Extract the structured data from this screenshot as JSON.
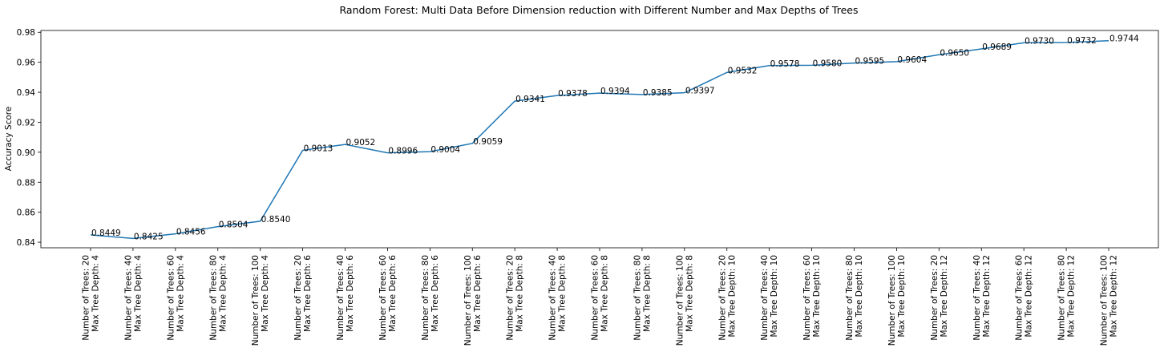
{
  "chart_data": {
    "type": "line",
    "title": "Random Forest: Multi Data Before Dimension reduction with Different Number and Max Depths of Trees",
    "xlabel": "",
    "ylabel": "Accuracy Score",
    "ylim": [
      0.8363,
      0.9812
    ],
    "yticks": [
      "0.84",
      "0.86",
      "0.88",
      "0.90",
      "0.92",
      "0.94",
      "0.96",
      "0.98"
    ],
    "ytick_values": [
      0.84,
      0.86,
      0.88,
      0.9,
      0.92,
      0.94,
      0.96,
      0.98
    ],
    "grid": false,
    "line_color": "#1f77b4",
    "categories": [
      [
        "Number of Trees: 20",
        "Max Tree Depth: 4"
      ],
      [
        "Number of Trees: 40",
        "Max Tree Depth: 4"
      ],
      [
        "Number of Trees: 60",
        "Max Tree Depth: 4"
      ],
      [
        "Number of Trees: 80",
        "Max Tree Depth: 4"
      ],
      [
        "Number of Trees: 100",
        "Max Tree Depth: 4"
      ],
      [
        "Number of Trees: 20",
        "Max Tree Depth: 6"
      ],
      [
        "Number of Trees: 40",
        "Max Tree Depth: 6"
      ],
      [
        "Number of Trees: 60",
        "Max Tree Depth: 6"
      ],
      [
        "Number of Trees: 80",
        "Max Tree Depth: 6"
      ],
      [
        "Number of Trees: 100",
        "Max Tree Depth: 6"
      ],
      [
        "Number of Trees: 20",
        "Max Tree Depth: 8"
      ],
      [
        "Number of Trees: 40",
        "Max Tree Depth: 8"
      ],
      [
        "Number of Trees: 60",
        "Max Tree Depth: 8"
      ],
      [
        "Number of Trees: 80",
        "Max Tree Depth: 8"
      ],
      [
        "Number of Trees: 100",
        "Max Tree Depth: 8"
      ],
      [
        "Number of Trees: 20",
        "Max Tree Depth: 10"
      ],
      [
        "Number of Trees: 40",
        "Max Tree Depth: 10"
      ],
      [
        "Number of Trees: 60",
        "Max Tree Depth: 10"
      ],
      [
        "Number of Trees: 80",
        "Max Tree Depth: 10"
      ],
      [
        "Number of Trees: 100",
        "Max Tree Depth: 10"
      ],
      [
        "Number of Trees: 20",
        "Max Tree Depth: 12"
      ],
      [
        "Number of Trees: 40",
        "Max Tree Depth: 12"
      ],
      [
        "Number of Trees: 60",
        "Max Tree Depth: 12"
      ],
      [
        "Number of Trees: 80",
        "Max Tree Depth: 12"
      ],
      [
        "Number of Trees: 100",
        "Max Tree Depth: 12"
      ]
    ],
    "values": [
      0.8449,
      0.8425,
      0.8456,
      0.8504,
      0.854,
      0.9013,
      0.9052,
      0.8996,
      0.9004,
      0.9059,
      0.9341,
      0.9378,
      0.9394,
      0.9385,
      0.9397,
      0.9532,
      0.9578,
      0.958,
      0.9595,
      0.9604,
      0.965,
      0.9689,
      0.973,
      0.9732,
      0.9744
    ],
    "data_labels": [
      "0.8449",
      "0.8425",
      "0.8456",
      "0.8504",
      "0.8540",
      "0.9013",
      "0.9052",
      "0.8996",
      "0.9004",
      "0.9059",
      "0.9341",
      "0.9378",
      "0.9394",
      "0.9385",
      "0.9397",
      "0.9532",
      "0.9578",
      "0.9580",
      "0.9595",
      "0.9604",
      "0.9650",
      "0.9689",
      "0.9730",
      "0.9732",
      "0.9744"
    ]
  }
}
